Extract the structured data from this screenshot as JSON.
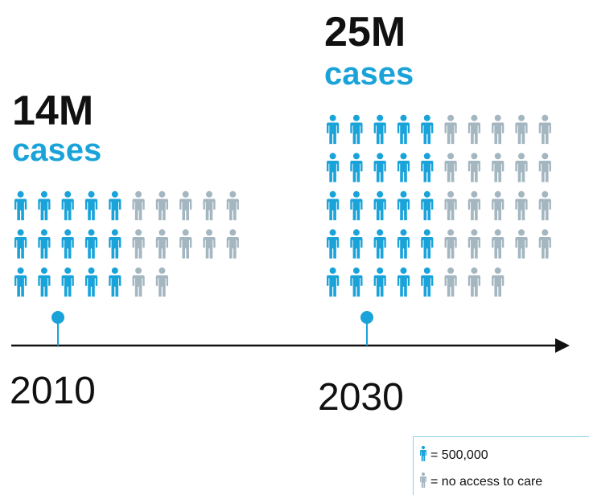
{
  "groups": [
    {
      "value_label": "14M",
      "unit": "cases",
      "year": "2010",
      "icons": {
        "access": 15,
        "no_access": 12
      }
    },
    {
      "value_label": "25M",
      "unit": "cases",
      "year": "2030",
      "icons": {
        "access": 25,
        "no_access": 23
      }
    }
  ],
  "legend": {
    "access": "= 500,000",
    "no_access": "= no access to care"
  },
  "colors": {
    "access": "#1aa3d9",
    "no_access": "#a4b6c0"
  }
}
